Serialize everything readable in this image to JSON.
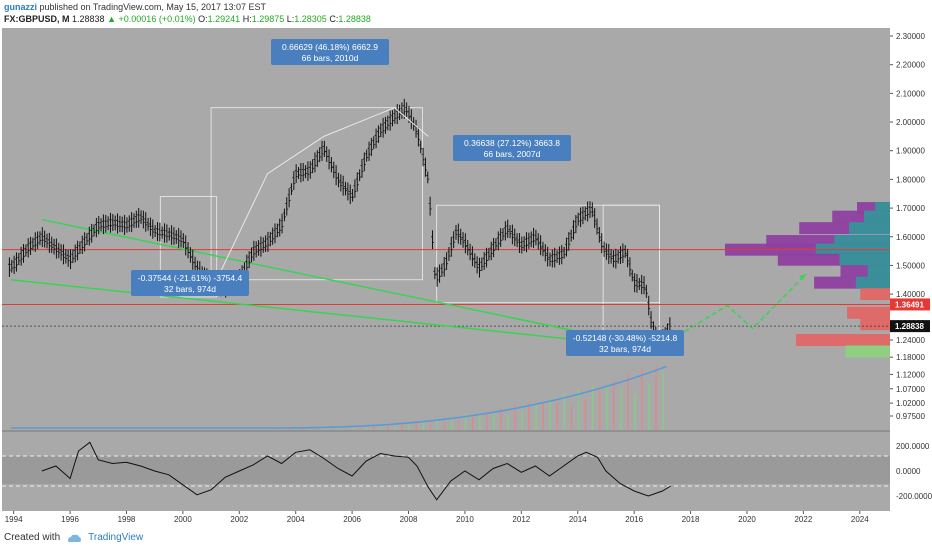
{
  "header": {
    "author": "gunazzi",
    "published": "published on TradingView.com, May 15, 2017 13:07 EST",
    "symbol": "FX:GBPUSD, M",
    "last": "1.28838",
    "change": "+0.00016 (+0.01%)",
    "open_label": "O:",
    "open": "1.29241",
    "high_label": "H:",
    "high": "1.29875",
    "low_label": "L:",
    "low": "1.28305",
    "close_label": "C:",
    "close": "1.28838"
  },
  "footer": {
    "created_with": "Created with",
    "brand": "TradingView"
  },
  "chart_data": {
    "type": "line",
    "title": "FX:GBPUSD, M",
    "x_ticks": [
      "1994",
      "1996",
      "1998",
      "2000",
      "2002",
      "2004",
      "2006",
      "2008",
      "2010",
      "2012",
      "2014",
      "2016",
      "2018",
      "2020",
      "2022",
      "2024"
    ],
    "y_ticks": [
      "2.30000",
      "2.20000",
      "2.10000",
      "2.00000",
      "1.90000",
      "1.80000",
      "1.70000",
      "1.60000",
      "1.50000",
      "1.40000",
      "1.30000",
      "1.24000",
      "1.18000",
      "1.12000",
      "1.07000",
      "1.02000",
      "0.97500"
    ],
    "ylim": [
      0.95,
      2.32
    ],
    "price_series": {
      "name": "GBPUSD",
      "x": [
        1993.0,
        1993.5,
        1994.0,
        1994.5,
        1995.0,
        1995.5,
        1996.0,
        1996.5,
        1997.0,
        1997.5,
        1998.0,
        1998.5,
        1999.0,
        1999.5,
        2000.0,
        2000.5,
        2001.0,
        2001.5,
        2002.0,
        2002.5,
        2003.0,
        2003.5,
        2004.0,
        2004.5,
        2005.0,
        2005.5,
        2006.0,
        2006.5,
        2007.0,
        2007.5,
        2007.9,
        2008.3,
        2008.7,
        2008.95,
        2009.3,
        2009.7,
        2010.0,
        2010.5,
        2011.0,
        2011.5,
        2012.0,
        2012.5,
        2013.0,
        2013.5,
        2014.0,
        2014.5,
        2014.9,
        2015.3,
        2015.7,
        2016.0,
        2016.4,
        2016.6,
        2016.8,
        2017.0,
        2017.3
      ],
      "y": [
        1.52,
        1.48,
        1.5,
        1.56,
        1.6,
        1.56,
        1.52,
        1.58,
        1.64,
        1.65,
        1.64,
        1.67,
        1.62,
        1.61,
        1.59,
        1.49,
        1.44,
        1.42,
        1.45,
        1.55,
        1.58,
        1.64,
        1.82,
        1.83,
        1.91,
        1.8,
        1.74,
        1.88,
        1.97,
        2.02,
        2.05,
        1.97,
        1.8,
        1.45,
        1.5,
        1.62,
        1.58,
        1.49,
        1.56,
        1.63,
        1.57,
        1.6,
        1.52,
        1.54,
        1.66,
        1.7,
        1.56,
        1.52,
        1.55,
        1.44,
        1.43,
        1.31,
        1.24,
        1.24,
        1.29
      ]
    },
    "projection": {
      "x": [
        2017.3,
        2019.3,
        2020.2,
        2022.1
      ],
      "y": [
        1.24,
        1.36,
        1.28,
        1.47
      ]
    },
    "horizontal_lines": [
      1.555,
      1.364
    ],
    "current_price_line": 1.28838,
    "price_labels": [
      "1.36491",
      "1.28838"
    ],
    "measurements": [
      {
        "text1": "0.66629 (46.18%) 6662.9",
        "text2": "66 bars, 2010d"
      },
      {
        "text1": "0.36638 (27.12%) 3663.8",
        "text2": "66 bars, 2007d"
      },
      {
        "text1": "-0.37544 (-21.61%) -3754.4",
        "text2": "32 bars, 974d"
      },
      {
        "text1": "-0.52148 (-30.48%) -5214.8",
        "text2": "32 bars, 974d"
      }
    ],
    "volume_profile": [
      {
        "price": 1.7,
        "value": 0.2,
        "color": "#8e3fa0"
      },
      {
        "price": 1.67,
        "value": 0.35,
        "color": "#8e3fa0"
      },
      {
        "price": 1.63,
        "value": 0.55,
        "color": "#8e3fa0"
      },
      {
        "price": 1.585,
        "value": 0.75,
        "color": "#8e3fa0"
      },
      {
        "price": 1.555,
        "value": 1.0,
        "color": "#8e3fa0"
      },
      {
        "price": 1.52,
        "value": 0.68,
        "color": "#8e3fa0"
      },
      {
        "price": 1.48,
        "value": 0.3,
        "color": "#8e3fa0"
      },
      {
        "price": 1.44,
        "value": 0.46,
        "color": "#8e3fa0"
      },
      {
        "price": 1.4,
        "value": 0.18,
        "color": "#e06666"
      },
      {
        "price": 1.335,
        "value": 0.26,
        "color": "#e06666"
      },
      {
        "price": 1.295,
        "value": 0.18,
        "color": "#e06666"
      },
      {
        "price": 1.24,
        "value": 0.57,
        "color": "#e06666"
      },
      {
        "price": 1.2,
        "value": 0.27,
        "color": "#8cd17d"
      }
    ],
    "oscillator": {
      "ticks": [
        "200.0000",
        "0.0000",
        "-200.0000"
      ],
      "range": [
        -280,
        280
      ],
      "x": [
        1995.0,
        1995.5,
        1996.0,
        1996.3,
        1996.7,
        1997.0,
        1997.5,
        1998.0,
        1998.5,
        1999.0,
        1999.5,
        2000.0,
        2000.5,
        2001.0,
        2001.5,
        2002.0,
        2002.5,
        2003.0,
        2003.5,
        2004.0,
        2004.5,
        2005.0,
        2005.5,
        2006.0,
        2006.5,
        2007.0,
        2007.5,
        2008.0,
        2008.3,
        2008.7,
        2009.0,
        2009.5,
        2010.0,
        2010.5,
        2011.0,
        2011.5,
        2012.0,
        2012.5,
        2013.0,
        2013.5,
        2014.0,
        2014.3,
        2014.7,
        2015.0,
        2015.5,
        2016.0,
        2016.5,
        2017.0,
        2017.3
      ],
      "y": [
        0,
        40,
        -60,
        160,
        230,
        90,
        60,
        70,
        40,
        0,
        -30,
        -110,
        -190,
        -150,
        -50,
        0,
        50,
        120,
        60,
        150,
        170,
        100,
        20,
        -40,
        80,
        140,
        120,
        110,
        40,
        -130,
        -230,
        -80,
        0,
        -70,
        20,
        60,
        -10,
        40,
        -40,
        40,
        120,
        150,
        110,
        0,
        -100,
        -160,
        -200,
        -160,
        -120
      ]
    }
  }
}
